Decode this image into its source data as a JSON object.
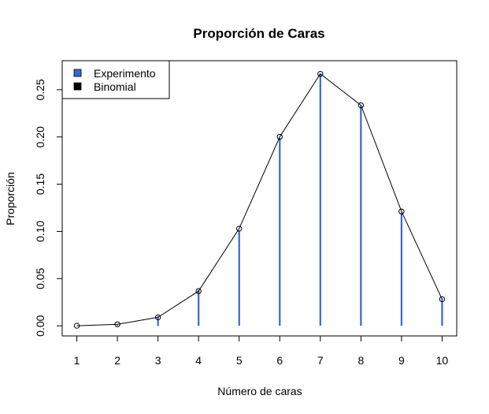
{
  "chart_data": {
    "type": "line",
    "title": "Proporción de Caras",
    "xlabel": "Número de caras",
    "ylabel": "Proporción",
    "categories": [
      "1",
      "2",
      "3",
      "4",
      "5",
      "6",
      "7",
      "8",
      "9",
      "10"
    ],
    "x": [
      1,
      2,
      3,
      4,
      5,
      6,
      7,
      8,
      9,
      10
    ],
    "xlim": [
      0.64,
      10.36
    ],
    "ylim": [
      -0.0107,
      0.2807
    ],
    "y_ticks": [
      "0.00",
      "0.05",
      "0.10",
      "0.15",
      "0.20",
      "0.25"
    ],
    "grid": false,
    "series": [
      {
        "name": "Experimento",
        "style": "vertical bars (histogram-like lines)",
        "color": "#3A66D2",
        "values": [
          0.0,
          0.001,
          0.01,
          0.038,
          0.101,
          0.199,
          0.267,
          0.233,
          0.12,
          0.029
        ]
      },
      {
        "name": "Binomial",
        "style": "line with open circle markers",
        "color": "#000000",
        "values": [
          0.0001,
          0.0016,
          0.009,
          0.0368,
          0.1029,
          0.2001,
          0.2668,
          0.2335,
          0.1211,
          0.0282
        ]
      }
    ],
    "legend": {
      "position": "top-left",
      "entries": [
        {
          "label": "Experimento",
          "color": "#3A66D2"
        },
        {
          "label": "Binomial",
          "color": "#000000"
        }
      ]
    }
  }
}
